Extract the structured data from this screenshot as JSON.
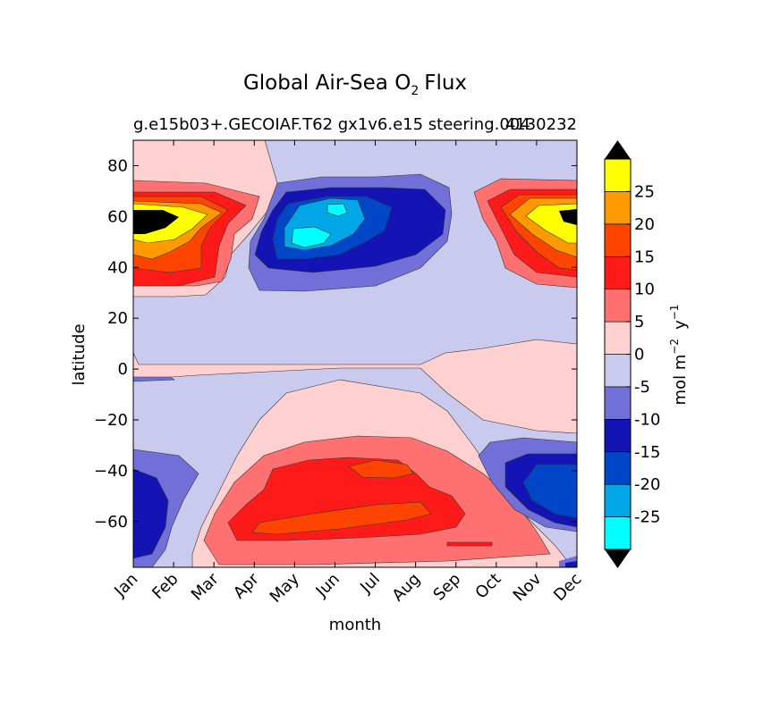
{
  "chart_data": {
    "type": "heatmap",
    "title_main": "Global Air-Sea O",
    "title_sub": "2",
    "title_tail": "Flux",
    "subtitle_left": "g.e15b03+.GECOIAF.T62 gx1v6.e15 steering.004",
    "subtitle_right": "4130232",
    "xlabel": "month",
    "ylabel": "latitude",
    "x_ticks": [
      "Jan",
      "Feb",
      "Mar",
      "Apr",
      "May",
      "Jun",
      "Jul",
      "Aug",
      "Sep",
      "Oct",
      "Nov",
      "Dec"
    ],
    "y_ticks": [
      "80",
      "60",
      "40",
      "20",
      "0",
      "−20",
      "−40",
      "−60"
    ],
    "ylim": [
      -78,
      90
    ],
    "colorbar": {
      "label_main": "mol m",
      "label_exp1": "−2",
      "label_mid": "y",
      "label_exp2": "−1",
      "tick_labels": [
        "25",
        "20",
        "15",
        "10",
        "5",
        "0",
        "-5",
        "-10",
        "-15",
        "-20",
        "-25"
      ],
      "levels": [
        -30,
        -25,
        -20,
        -15,
        -10,
        -5,
        0,
        5,
        10,
        15,
        20,
        25,
        30
      ],
      "colors": [
        "#00ffff",
        "#00a6e6",
        "#0046c8",
        "#1414b4",
        "#7070d8",
        "#cacaee",
        "#ffd0d0",
        "#ff7070",
        "#ff1a1a",
        "#ff4400",
        "#ff9900",
        "#ffff00"
      ],
      "under_color": "#000000",
      "over_color": "#000000"
    }
  }
}
